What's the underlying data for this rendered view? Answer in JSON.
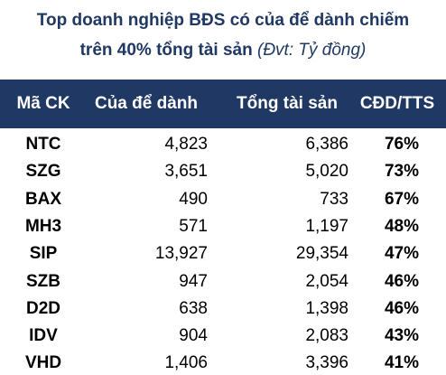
{
  "header": {
    "title_line1": "Top doanh nghiệp BĐS có của để dành chiếm",
    "title_line2": "trên 40% tổng tài sản",
    "unit": "(Đvt: Tỷ đồng)"
  },
  "table": {
    "columns": [
      "Mã CK",
      "Của để dành",
      "Tổng tài sản",
      "CĐD/TTS"
    ],
    "rows": [
      [
        "NTC",
        "4,823",
        "6,386",
        "76%"
      ],
      [
        "SZG",
        "3,651",
        "5,020",
        "73%"
      ],
      [
        "BAX",
        "490",
        "733",
        "67%"
      ],
      [
        "MH3",
        "571",
        "1,197",
        "48%"
      ],
      [
        "SIP",
        "13,927",
        "29,354",
        "47%"
      ],
      [
        "SZB",
        "947",
        "2,054",
        "46%"
      ],
      [
        "D2D",
        "638",
        "1,398",
        "46%"
      ],
      [
        "IDV",
        "904",
        "2,083",
        "43%"
      ],
      [
        "VHD",
        "1,406",
        "3,396",
        "41%"
      ]
    ]
  }
}
